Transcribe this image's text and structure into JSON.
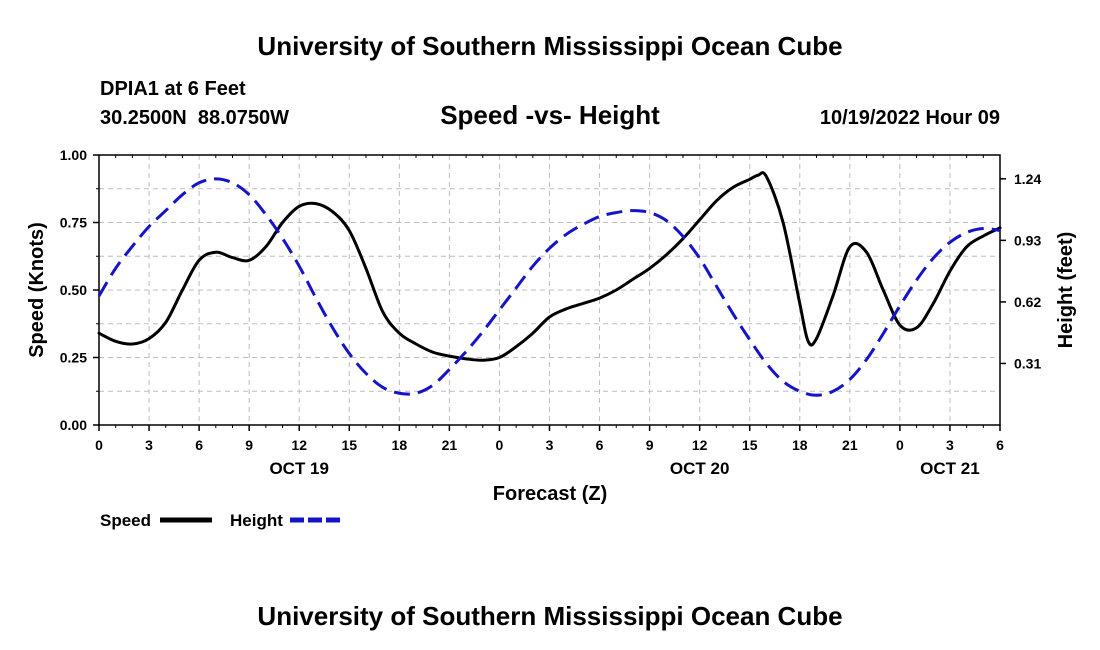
{
  "header": {
    "title": "University of Southern Mississippi Ocean Cube",
    "station": "DPIA1 at 6 Feet",
    "coords": "30.2500N  88.0750W",
    "subtitle": "Speed -vs- Height",
    "datetime": "10/19/2022 Hour 09"
  },
  "footer": {
    "title": "University of Southern Mississippi Ocean Cube"
  },
  "chart_data": {
    "type": "line",
    "title": "Speed -vs- Height",
    "xlabel": "Forecast (Z)",
    "ylabel_left": "Speed (Knots)",
    "ylabel_right": "Height (feet)",
    "x_range_hours": [
      0,
      54
    ],
    "x_tick_labels": [
      "0",
      "3",
      "6",
      "9",
      "12",
      "15",
      "18",
      "21",
      "0",
      "3",
      "6",
      "9",
      "12",
      "15",
      "18",
      "21",
      "0",
      "3",
      "6"
    ],
    "date_labels": [
      {
        "label": "OCT 19",
        "hour": 12
      },
      {
        "label": "OCT 20",
        "hour": 36
      },
      {
        "label": "OCT 21",
        "hour": 51
      }
    ],
    "ylim_left": [
      0,
      1.0
    ],
    "y_tick_labels_left": [
      "0.00",
      "0.25",
      "0.50",
      "0.75",
      "1.00"
    ],
    "ylim_right": [
      0.0,
      1.36
    ],
    "y_tick_values_right": [
      0.31,
      0.62,
      0.93,
      1.24
    ],
    "y_tick_labels_right": [
      "0.31",
      "0.62",
      "0.93",
      "1.24"
    ],
    "grid": true,
    "legend_position": "bottom-left",
    "series": [
      {
        "name": "Speed",
        "axis": "left",
        "color": "#000000",
        "dash": false,
        "x": [
          0,
          1,
          2,
          3,
          4,
          5,
          6,
          7,
          8,
          9,
          10,
          11,
          12,
          13,
          14,
          15,
          16,
          17,
          18,
          19,
          20,
          21,
          22,
          23,
          24,
          25,
          26,
          27,
          28,
          29,
          30,
          31,
          32,
          33,
          34,
          35,
          36,
          37,
          38,
          39,
          39.5,
          40,
          41,
          42,
          42.5,
          43,
          44,
          45,
          46,
          47,
          48,
          49,
          50,
          51,
          52,
          53,
          54
        ],
        "y": [
          0.34,
          0.31,
          0.3,
          0.32,
          0.38,
          0.5,
          0.61,
          0.64,
          0.62,
          0.61,
          0.66,
          0.75,
          0.81,
          0.82,
          0.79,
          0.72,
          0.58,
          0.42,
          0.34,
          0.3,
          0.27,
          0.255,
          0.245,
          0.24,
          0.25,
          0.29,
          0.34,
          0.4,
          0.43,
          0.45,
          0.47,
          0.5,
          0.54,
          0.58,
          0.63,
          0.69,
          0.76,
          0.83,
          0.88,
          0.91,
          0.925,
          0.92,
          0.75,
          0.45,
          0.31,
          0.32,
          0.48,
          0.66,
          0.64,
          0.5,
          0.37,
          0.36,
          0.45,
          0.57,
          0.66,
          0.7,
          0.73
        ]
      },
      {
        "name": "Height",
        "axis": "right",
        "color": "#1414c8",
        "dash": true,
        "x": [
          0,
          1,
          2,
          3,
          4,
          5,
          6,
          7,
          8,
          9,
          10,
          11,
          12,
          13,
          14,
          15,
          16,
          17,
          18,
          19,
          20,
          21,
          22,
          23,
          24,
          25,
          26,
          27,
          28,
          29,
          30,
          31,
          32,
          33,
          34,
          35,
          36,
          37,
          38,
          39,
          40,
          41,
          42,
          43,
          44,
          45,
          46,
          47,
          48,
          49,
          50,
          51,
          52,
          53,
          54
        ],
        "y": [
          0.65,
          0.79,
          0.9,
          1.0,
          1.08,
          1.16,
          1.22,
          1.24,
          1.22,
          1.16,
          1.06,
          0.94,
          0.8,
          0.64,
          0.49,
          0.36,
          0.26,
          0.19,
          0.16,
          0.16,
          0.2,
          0.28,
          0.37,
          0.47,
          0.58,
          0.69,
          0.8,
          0.89,
          0.96,
          1.01,
          1.05,
          1.07,
          1.08,
          1.07,
          1.03,
          0.95,
          0.84,
          0.7,
          0.56,
          0.43,
          0.31,
          0.22,
          0.17,
          0.15,
          0.17,
          0.23,
          0.33,
          0.46,
          0.6,
          0.73,
          0.84,
          0.92,
          0.97,
          0.99,
          0.98
        ]
      }
    ]
  }
}
